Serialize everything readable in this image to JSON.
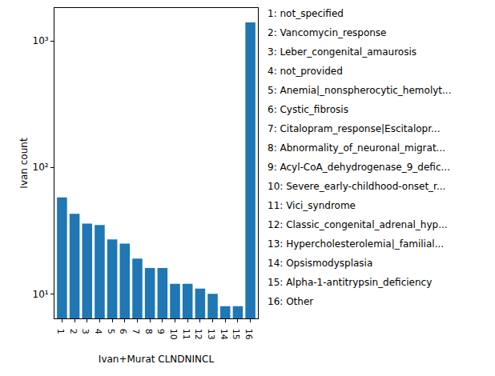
{
  "chart_data": {
    "type": "bar",
    "x_label": "Ivan+Murat CLNDNINCL",
    "y_label": "Ivan count",
    "categories": [
      "1",
      "2",
      "3",
      "4",
      "5",
      "6",
      "7",
      "8",
      "9",
      "10",
      "11",
      "12",
      "13",
      "14",
      "15",
      "16"
    ],
    "values": [
      58,
      43,
      36,
      35,
      27,
      25,
      19,
      16,
      16,
      12,
      12,
      11,
      10,
      8,
      8,
      1400
    ],
    "color": "#1f77b4",
    "log": "y",
    "grid": false,
    "ylim": [
      6.4,
      1820
    ],
    "yticks": [
      {
        "value": 10,
        "label": "10¹"
      },
      {
        "value": 100,
        "label": "10²"
      },
      {
        "value": 1000,
        "label": "10³"
      }
    ],
    "annotations": [
      "1: not_specified",
      "2: Vancomycin_response",
      "3: Leber_congenital_amaurosis",
      "4: not_provided",
      "5: Anemia|_nonspherocytic_hemolyt...",
      "6: Cystic_fibrosis",
      "7: Citalopram_response|Escitalopr...",
      "8: Abnormality_of_neuronal_migrat...",
      "9: Acyl-CoA_dehydrogenase_9_defic...",
      "10: Severe_early-childhood-onset_r...",
      "11: Vici_syndrome",
      "12: Classic_congenital_adrenal_hyp...",
      "13: Hypercholesterolemia|_familial...",
      "14: Opsismodysplasia",
      "15: Alpha-1-antitrypsin_deficiency",
      "16: Other"
    ]
  }
}
